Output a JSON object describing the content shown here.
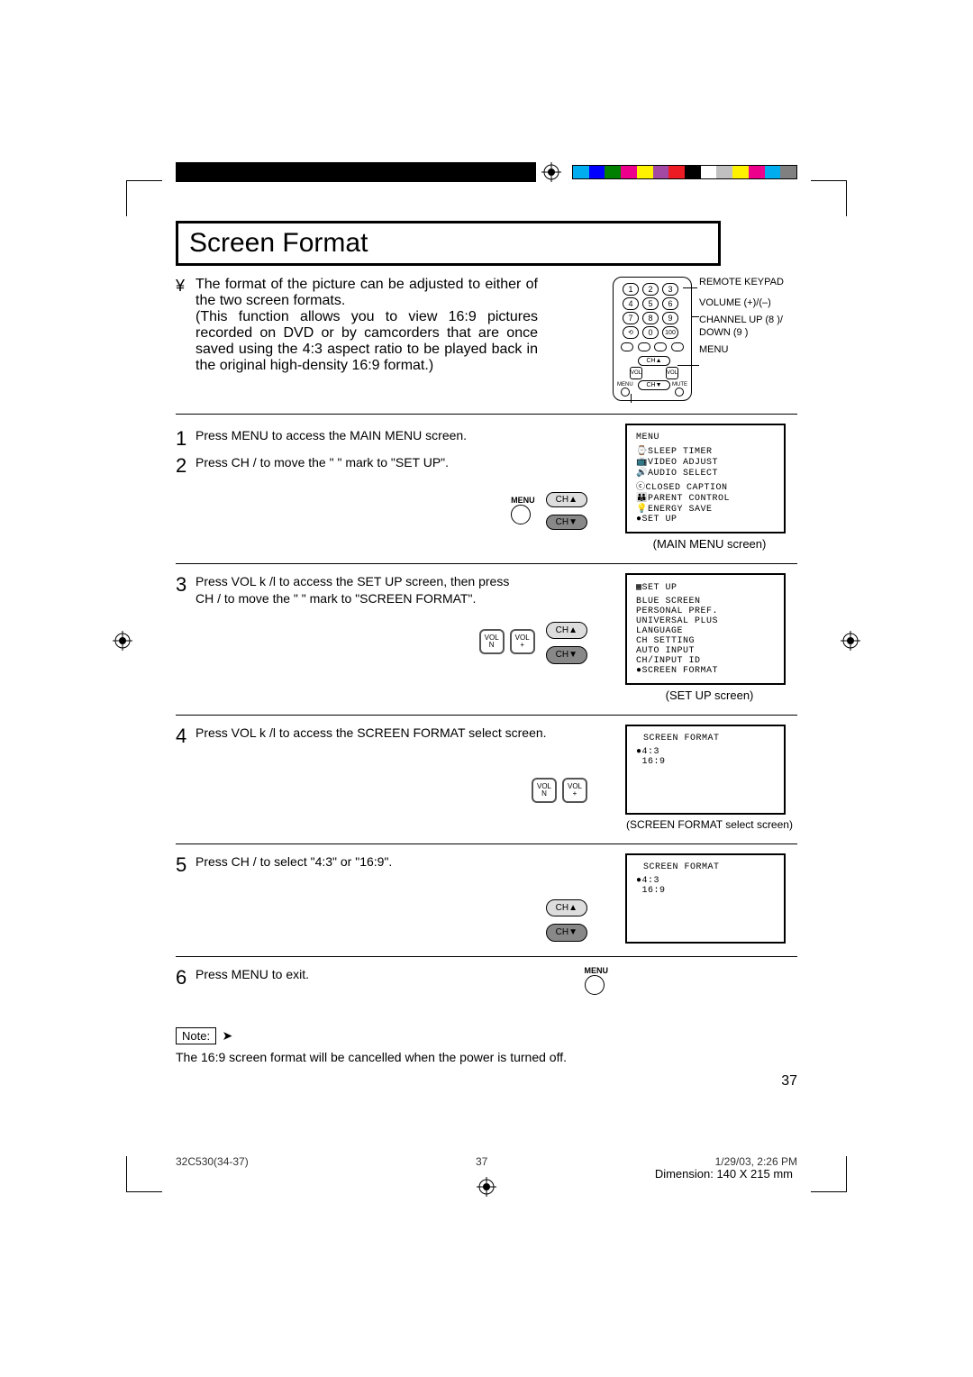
{
  "colorbar": [
    "#00aeef",
    "#0000ff",
    "#008000",
    "#ec008c",
    "#fff200",
    "#a349a4",
    "#ed1c24",
    "#000000",
    "#ffffff",
    "#c0c0c0",
    "#fff200",
    "#ec008c",
    "#00aeef",
    "#808080"
  ],
  "title": "Screen Format",
  "intro": "The format of the picture can be adjusted to either of the two screen formats.",
  "intro_detail": "(This function allows you to view 16:9 pictures recorded on DVD or by camcorders that are once saved using the 4:3 aspect ratio to be played back in the original high-density 16:9 format.)",
  "remote_labels": {
    "keypad": "REMOTE KEYPAD",
    "volume": "VOLUME (+)/(–)",
    "channel": "CHANNEL UP (8 )/ DOWN (9 )",
    "menu": "MENU"
  },
  "steps": {
    "s1": "Press MENU to access the MAIN MENU screen.",
    "s2": "Press CH   /   to move the \"   \" mark to \"SET UP\".",
    "s3a": "Press VOL k /l   to access the SET UP screen, then press",
    "s3b": "CH   /   to move the \"   \" mark to \"SCREEN FORMAT\".",
    "s4": "Press VOL k /l   to access the SCREEN FORMAT select screen.",
    "s5": "Press CH   /   to select \"4:3\" or \"16:9\".",
    "s6": "Press MENU to exit."
  },
  "buttons": {
    "menu": "MENU",
    "chup": "CH▲",
    "chdn": "CH▼",
    "voln": "VOL\nN",
    "volp": "VOL\n+"
  },
  "tv_menu": {
    "title": "MENU",
    "items": [
      "⌚SLEEP TIMER",
      "📺VIDEO ADJUST",
      "🔊AUDIO SELECT",
      "ⓒCLOSED CAPTION",
      "👪PARENT CONTROL",
      "💡ENERGY SAVE",
      "●SET UP"
    ],
    "caption": "(MAIN MENU screen)"
  },
  "tv_setup": {
    "title": "▦SET UP",
    "items": [
      "BLUE SCREEN",
      "PERSONAL PREF.",
      "UNIVERSAL PLUS",
      "LANGUAGE",
      "CH SETTING",
      "AUTO INPUT",
      "CH/INPUT ID",
      "●SCREEN FORMAT"
    ],
    "caption": "(SET UP screen)"
  },
  "tv_sf1": {
    "title": "SCREEN FORMAT",
    "items": [
      "●4:3",
      " 16:9"
    ],
    "caption": "(SCREEN FORMAT select screen)"
  },
  "tv_sf2": {
    "title": "SCREEN FORMAT",
    "items": [
      "●4:3",
      " 16:9"
    ]
  },
  "note_label": "Note:",
  "note_text": "The 16:9 screen format will be cancelled when the power is turned off.",
  "page_number": "37",
  "footer_left": "32C530(34-37)",
  "footer_mid": "37",
  "footer_right": "1/29/03, 2:26 PM",
  "dimension": "Dimension: 140  X  215 mm"
}
